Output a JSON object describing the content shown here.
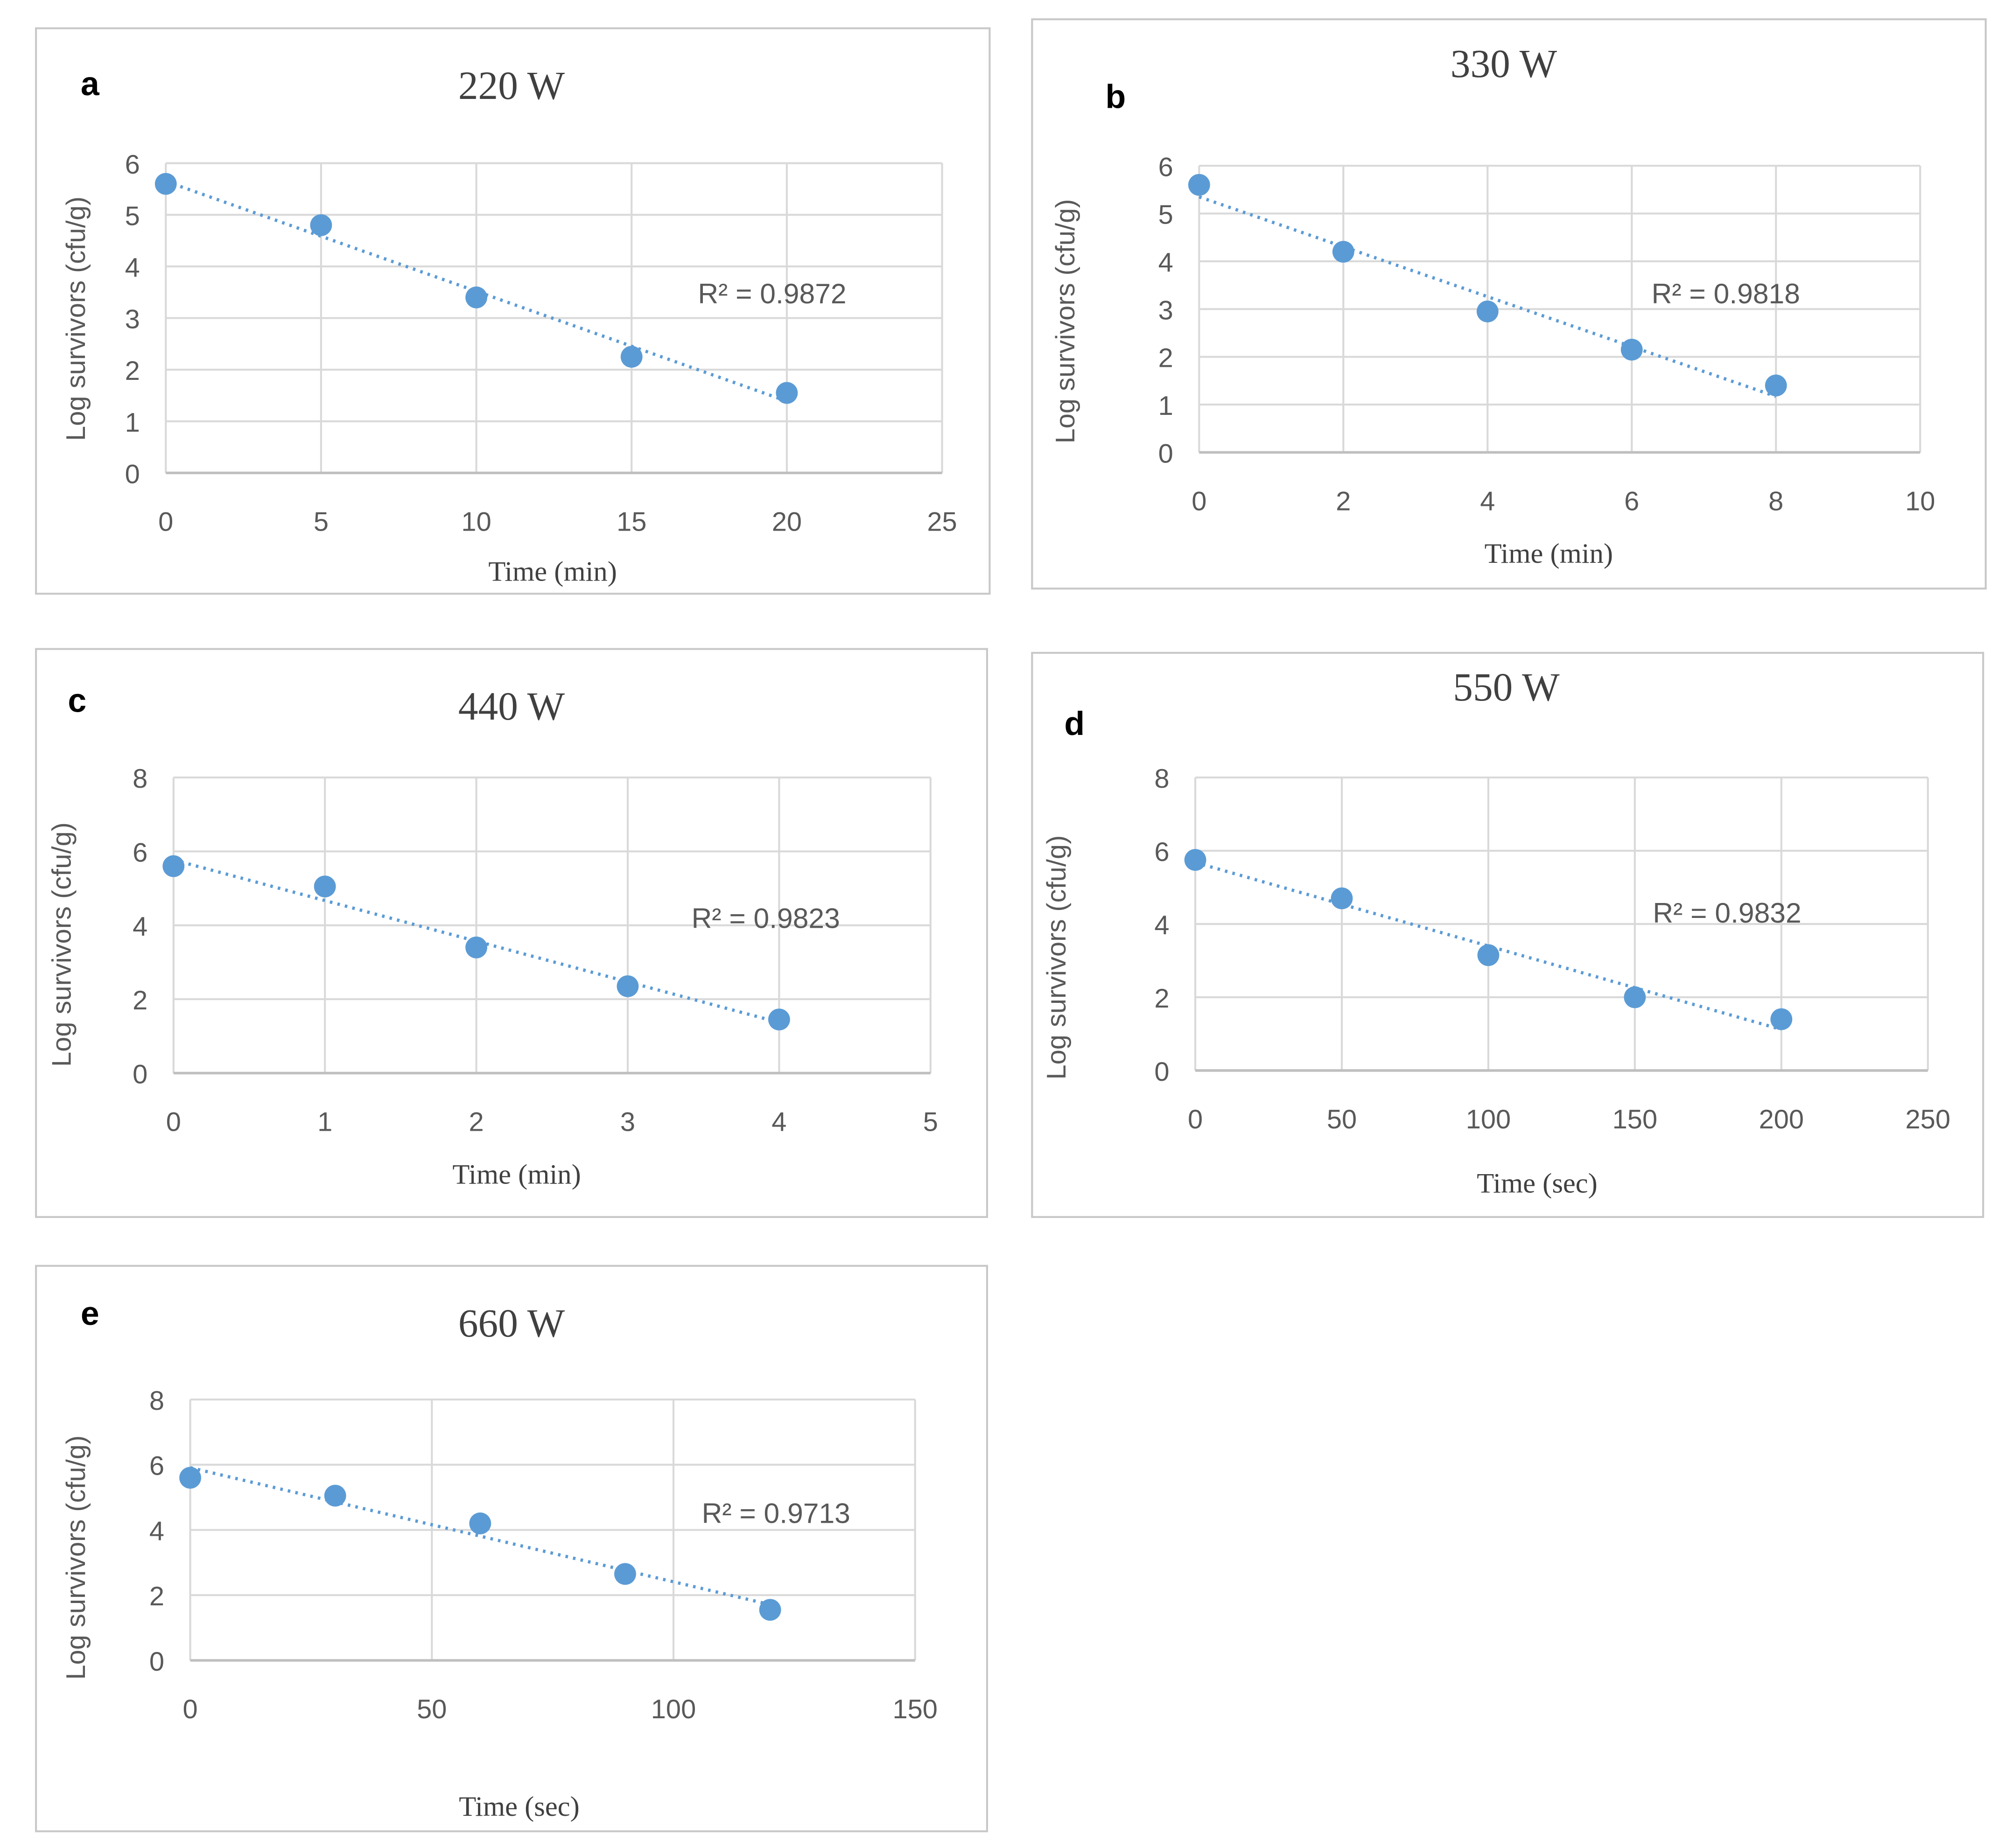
{
  "colors": {
    "point": "#5b9bd5",
    "grid": "#d9d9d9",
    "frame": "#c8c8c8"
  },
  "chart_data": [
    {
      "type": "scatter",
      "panel": "a",
      "title": "220 W",
      "xlabel": "Time (min)",
      "ylabel": "Log survivors (cfu/g)",
      "xlim": [
        0,
        25
      ],
      "xticks": [
        0,
        5,
        10,
        15,
        20,
        25
      ],
      "ylim": [
        0,
        6
      ],
      "yticks": [
        0,
        1,
        2,
        3,
        4,
        5,
        6
      ],
      "x": [
        0,
        5,
        10,
        15,
        20
      ],
      "y": [
        5.6,
        4.8,
        3.4,
        2.25,
        1.55
      ],
      "trendline": "linear",
      "r2_label": "R² = 0.9872"
    },
    {
      "type": "scatter",
      "panel": "b",
      "title": "330 W",
      "xlabel": "Time (min)",
      "ylabel": "Log survivors (cfu/g)",
      "xlim": [
        0,
        10
      ],
      "xticks": [
        0,
        2,
        4,
        6,
        8,
        10
      ],
      "ylim": [
        0,
        6
      ],
      "yticks": [
        0,
        1,
        2,
        3,
        4,
        5,
        6
      ],
      "x": [
        0,
        2,
        4,
        6,
        8
      ],
      "y": [
        5.6,
        4.2,
        2.95,
        2.15,
        1.4
      ],
      "trendline": "linear",
      "r2_label": "R² = 0.9818"
    },
    {
      "type": "scatter",
      "panel": "c",
      "title": "440 W",
      "xlabel": "Time (min)",
      "ylabel": "Log survivors (cfu/g)",
      "xlim": [
        0,
        5
      ],
      "xticks": [
        0,
        1,
        2,
        3,
        4,
        5
      ],
      "ylim": [
        0,
        8
      ],
      "yticks": [
        0,
        2,
        4,
        6,
        8
      ],
      "x": [
        0,
        1,
        2,
        3,
        4
      ],
      "y": [
        5.6,
        5.05,
        3.4,
        2.35,
        1.45
      ],
      "trendline": "linear",
      "r2_label": "R² = 0.9823"
    },
    {
      "type": "scatter",
      "panel": "d",
      "title": "550 W",
      "xlabel": "Time (sec)",
      "ylabel": "Log survivors (cfu/g)",
      "xlim": [
        0,
        250
      ],
      "xticks": [
        0,
        50,
        100,
        150,
        200,
        250
      ],
      "ylim": [
        0,
        8
      ],
      "yticks": [
        0,
        2,
        4,
        6,
        8
      ],
      "x": [
        0,
        50,
        100,
        150,
        200
      ],
      "y": [
        5.75,
        4.7,
        3.15,
        2.0,
        1.4
      ],
      "trendline": "linear",
      "r2_label": "R² = 0.9832"
    },
    {
      "type": "scatter",
      "panel": "e",
      "title": "660 W",
      "xlabel": "Time (sec)",
      "ylabel": "Log survivors (cfu/g)",
      "xlim": [
        0,
        150
      ],
      "xticks": [
        0,
        50,
        100,
        150
      ],
      "ylim": [
        0,
        8
      ],
      "yticks": [
        0,
        2,
        4,
        6,
        8
      ],
      "x": [
        0,
        30,
        60,
        90,
        120
      ],
      "y": [
        5.6,
        5.05,
        4.2,
        2.65,
        1.55
      ],
      "trendline": "linear",
      "r2_label": "R² = 0.9713"
    }
  ]
}
